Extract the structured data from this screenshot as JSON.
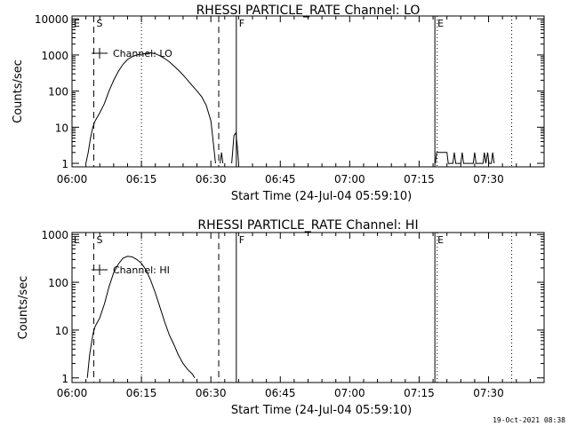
{
  "footer_timestamp": "19-Oct-2021 08:38",
  "chart_data": [
    {
      "type": "line",
      "title": "RHESSI PARTICLE_RATE Channel: LO",
      "xlabel": "Start Time (24-Jul-04 05:59:10)",
      "ylabel": "Counts/sec",
      "yscale": "log",
      "ylim": [
        0.8,
        12000
      ],
      "xlim_minutes": [
        0,
        102
      ],
      "x_tick_labels": [
        "06:00",
        "06:15",
        "06:30",
        "06:45",
        "07:00",
        "07:15",
        "07:30"
      ],
      "y_ticks": [
        1,
        10,
        100,
        1000,
        10000
      ],
      "y_tick_labels": [
        "1",
        "10",
        "100",
        "1000",
        "10000"
      ],
      "legend": {
        "label": "Channel: LO",
        "position": "top-left"
      },
      "markers": [
        {
          "time": "06:04.7",
          "style": "dashed",
          "label": "S"
        },
        {
          "time": "06:15.0",
          "style": "dotted",
          "label": ""
        },
        {
          "time": "06:31.7",
          "style": "dashed",
          "label": ""
        },
        {
          "time": "06:35.5",
          "style": "solid",
          "label": "F"
        },
        {
          "time": "07:18.4",
          "style": "solid",
          "label": "E"
        },
        {
          "time": "07:18.9",
          "style": "dotted",
          "label": ""
        },
        {
          "time": "07:35.0",
          "style": "dotted",
          "label": ""
        }
      ],
      "corner_label": "E",
      "series": [
        {
          "segments": [
            [
              [
                "06:03.0",
                1
              ],
              [
                "06:03.5",
                2
              ],
              [
                "06:04.0",
                5
              ],
              [
                "06:04.5",
                10
              ],
              [
                "06:05.0",
                15
              ],
              [
                "06:06.0",
                25
              ],
              [
                "06:07.0",
                45
              ],
              [
                "06:08.0",
                100
              ],
              [
                "06:09.0",
                200
              ],
              [
                "06:10.0",
                350
              ],
              [
                "06:11.0",
                550
              ],
              [
                "06:12.0",
                750
              ],
              [
                "06:13.0",
                900
              ],
              [
                "06:14.0",
                1000
              ],
              [
                "06:15.0",
                1050
              ],
              [
                "06:16.0",
                1100
              ],
              [
                "06:17.0",
                1150
              ],
              [
                "06:18.0",
                1080
              ],
              [
                "06:19.0",
                950
              ],
              [
                "06:20.0",
                800
              ],
              [
                "06:21.0",
                650
              ],
              [
                "06:22.0",
                500
              ],
              [
                "06:23.0",
                380
              ],
              [
                "06:24.0",
                280
              ],
              [
                "06:25.0",
                200
              ],
              [
                "06:26.0",
                140
              ],
              [
                "06:27.0",
                100
              ],
              [
                "06:28.0",
                70
              ],
              [
                "06:29.0",
                40
              ],
              [
                "06:30.0",
                15
              ],
              [
                "06:30.5",
                4
              ],
              [
                "06:31.0",
                1
              ]
            ],
            [
              [
                "06:32.0",
                1
              ],
              [
                "06:32.3",
                2
              ],
              [
                "06:32.6",
                1
              ]
            ],
            [
              [
                "06:34.5",
                1
              ],
              [
                "06:34.8",
                3
              ],
              [
                "06:35.0",
                6
              ],
              [
                "06:35.4",
                7
              ],
              [
                "06:35.7",
                3
              ],
              [
                "06:36.0",
                1
              ]
            ],
            [
              [
                "07:18.5",
                1
              ],
              [
                "07:18.8",
                2
              ],
              [
                "07:21.0",
                2
              ],
              [
                "07:21.3",
                1
              ],
              [
                "07:22.3",
                1
              ],
              [
                "07:22.6",
                2
              ],
              [
                "07:22.9",
                1
              ],
              [
                "07:24.0",
                1
              ],
              [
                "07:24.3",
                2
              ],
              [
                "07:24.6",
                1
              ],
              [
                "07:26.7",
                1
              ],
              [
                "07:27.0",
                2
              ],
              [
                "07:27.3",
                1
              ],
              [
                "07:28.8",
                1
              ],
              [
                "07:29.1",
                2
              ],
              [
                "07:29.4",
                1
              ],
              [
                "07:29.8",
                2
              ],
              [
                "07:30.1",
                1
              ],
              [
                "07:30.6",
                1
              ],
              [
                "07:30.9",
                2
              ],
              [
                "07:31.2",
                1
              ]
            ]
          ]
        }
      ]
    },
    {
      "type": "line",
      "title": "RHESSI PARTICLE_RATE Channel: HI",
      "xlabel": "Start Time (24-Jul-04 05:59:10)",
      "ylabel": "Counts/sec",
      "yscale": "log",
      "ylim": [
        0.8,
        1100
      ],
      "xlim_minutes": [
        0,
        102
      ],
      "x_tick_labels": [
        "06:00",
        "06:15",
        "06:30",
        "06:45",
        "07:00",
        "07:15",
        "07:30"
      ],
      "y_ticks": [
        1,
        10,
        100,
        1000
      ],
      "y_tick_labels": [
        "1",
        "10",
        "100",
        "1000"
      ],
      "legend": {
        "label": "Channel: HI",
        "position": "top-left"
      },
      "markers": [
        {
          "time": "06:04.7",
          "style": "dashed",
          "label": "S"
        },
        {
          "time": "06:15.0",
          "style": "dotted",
          "label": ""
        },
        {
          "time": "06:31.7",
          "style": "dashed",
          "label": ""
        },
        {
          "time": "06:35.5",
          "style": "solid",
          "label": "F"
        },
        {
          "time": "07:18.4",
          "style": "solid",
          "label": "E"
        },
        {
          "time": "07:18.9",
          "style": "dotted",
          "label": ""
        },
        {
          "time": "07:35.0",
          "style": "dotted",
          "label": ""
        }
      ],
      "corner_label": "E",
      "series": [
        {
          "segments": [
            [
              [
                "06:03.3",
                1
              ],
              [
                "06:03.8",
                3
              ],
              [
                "06:04.5",
                8
              ],
              [
                "06:05.0",
                12
              ],
              [
                "06:06.0",
                18
              ],
              [
                "06:07.0",
                35
              ],
              [
                "06:08.0",
                80
              ],
              [
                "06:09.0",
                160
              ],
              [
                "06:10.0",
                240
              ],
              [
                "06:11.0",
                320
              ],
              [
                "06:12.0",
                350
              ],
              [
                "06:13.0",
                340
              ],
              [
                "06:14.0",
                300
              ],
              [
                "06:15.0",
                250
              ],
              [
                "06:16.0",
                180
              ],
              [
                "06:17.0",
                110
              ],
              [
                "06:18.0",
                60
              ],
              [
                "06:19.0",
                30
              ],
              [
                "06:20.0",
                15
              ],
              [
                "06:21.0",
                8
              ],
              [
                "06:22.0",
                5
              ],
              [
                "06:23.0",
                3
              ],
              [
                "06:24.0",
                2
              ],
              [
                "06:25.0",
                1.5
              ],
              [
                "06:26.0",
                1.2
              ],
              [
                "06:26.5",
                1
              ]
            ]
          ]
        }
      ]
    }
  ]
}
